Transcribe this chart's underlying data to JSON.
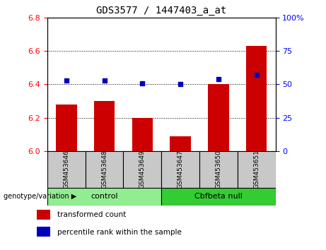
{
  "title": "GDS3577 / 1447403_a_at",
  "samples": [
    "GSM453646",
    "GSM453648",
    "GSM453649",
    "GSM453647",
    "GSM453650",
    "GSM453651"
  ],
  "transformed_count": [
    6.28,
    6.3,
    6.2,
    6.09,
    6.4,
    6.63
  ],
  "percentile_rank": [
    53,
    53,
    51,
    50,
    54,
    57
  ],
  "ylim_left": [
    6.0,
    6.8
  ],
  "ylim_right": [
    0,
    100
  ],
  "yticks_left": [
    6.0,
    6.2,
    6.4,
    6.6,
    6.8
  ],
  "yticks_right": [
    0,
    25,
    50,
    75,
    100
  ],
  "groups": [
    {
      "label": "control",
      "indices": [
        0,
        1,
        2
      ],
      "color": "#90EE90"
    },
    {
      "label": "Cbfbeta null",
      "indices": [
        3,
        4,
        5
      ],
      "color": "#33CC33"
    }
  ],
  "group_label_prefix": "genotype/variation",
  "bar_color": "#CC0000",
  "dot_color": "#0000BB",
  "bar_base": 6.0,
  "bg_color": "#FFFFFF",
  "label_area_color": "#C8C8C8",
  "legend_items": [
    {
      "label": "transformed count",
      "color": "#CC0000"
    },
    {
      "label": "percentile rank within the sample",
      "color": "#0000BB"
    }
  ]
}
